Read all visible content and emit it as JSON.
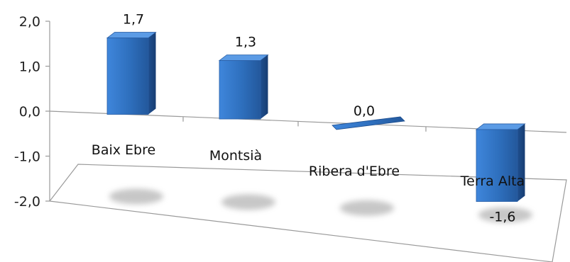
{
  "chart_data": {
    "type": "bar",
    "categories": [
      "Baix Ebre",
      "Montsià",
      "Ribera d'Ebre",
      "Terra Alta"
    ],
    "values": [
      1.7,
      1.3,
      0.0,
      -1.6
    ],
    "data_labels": [
      "1,7",
      "1,3",
      "0,0",
      "-1,6"
    ],
    "yticks": [
      2.0,
      1.0,
      0.0,
      -1.0,
      -2.0
    ],
    "ytick_labels": [
      "2,0",
      "1,0",
      "0,0",
      "-1,0",
      "-2,0"
    ],
    "ylim": [
      -2.0,
      2.0
    ],
    "title": "",
    "xlabel": "",
    "ylabel": "",
    "grid": false,
    "legend": "none",
    "style": "3d-column",
    "bar_color": "#2e6fbd"
  }
}
